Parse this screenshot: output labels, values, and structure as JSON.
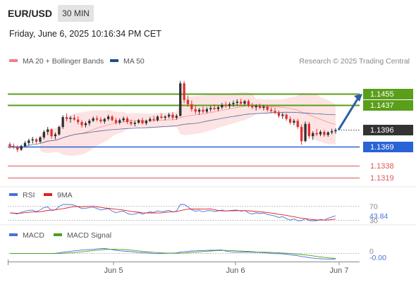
{
  "header": {
    "symbol": "EUR/USD",
    "timeframe": "30 MIN",
    "datetime": "Friday, June 6, 2025 10:16:34 PM CET"
  },
  "colors": {
    "candle_up": "#2f2f2f",
    "candle_down": "#e03030",
    "bollinger_fill": "#fde0e0",
    "bollinger_line": "#f08080",
    "ma50": "#1f4e8c",
    "resistance": "#5a9e1a",
    "pivot": "#2a63d6",
    "support": "#e05555",
    "last_price_bg": "#333333",
    "rsi": "#4a6fd8",
    "rsi_ma": "#e02020",
    "macd": "#4a6fd8",
    "macd_signal": "#4aa020"
  },
  "main_chart": {
    "legend": [
      {
        "label": "MA 20 + Bollinger Bands",
        "color": "#f08080"
      },
      {
        "label": "MA 50",
        "color": "#1f4e8c"
      }
    ],
    "credit": "Research © 2025 Trading Central",
    "levels": [
      {
        "value": 1.1455,
        "label": "1.1455",
        "kind": "resistance",
        "boxed": true
      },
      {
        "value": 1.1437,
        "label": "1.1437",
        "kind": "resistance",
        "boxed": true
      },
      {
        "value": 1.1396,
        "label": "1.1396",
        "kind": "last",
        "boxed": true
      },
      {
        "value": 1.1369,
        "label": "1.1369",
        "kind": "pivot",
        "boxed": true
      },
      {
        "value": 1.1338,
        "label": "1.1338",
        "kind": "support",
        "boxed": false
      },
      {
        "value": 1.1319,
        "label": "1.1319",
        "kind": "support",
        "boxed": false
      }
    ],
    "price_anchors": {
      "top_value": 1.1455,
      "bottom_value": 1.1369
    }
  },
  "rsi_panel": {
    "legend": [
      {
        "label": "RSI",
        "color": "#4a6fd8"
      },
      {
        "label": "9MA",
        "color": "#e02020"
      }
    ],
    "levels": [
      {
        "value": 70,
        "label": "70"
      },
      {
        "value": 30,
        "label": "30"
      }
    ],
    "current": "43.84"
  },
  "macd_panel": {
    "legend": [
      {
        "label": "MACD",
        "color": "#4a6fd8"
      },
      {
        "label": "MACD Signal",
        "color": "#4aa020"
      }
    ],
    "levels": [
      {
        "value": 0,
        "label": "0"
      }
    ],
    "current": "-0.00"
  },
  "x_axis": {
    "ticks": [
      "Jun 5",
      "Jun 6",
      "Jun 7"
    ]
  },
  "chart_data": {
    "type": "candlestick",
    "title": "EUR/USD",
    "timeframe": "30 MIN",
    "ylim": [
      1.13,
      1.149
    ],
    "x_ticks": [
      "Jun 5",
      "Jun 6",
      "Jun 7"
    ],
    "candles": [
      [
        1.1373,
        1.1376,
        1.1366,
        1.137
      ],
      [
        1.137,
        1.1374,
        1.1365,
        1.1368
      ],
      [
        1.1368,
        1.1371,
        1.136,
        1.1364
      ],
      [
        1.1364,
        1.1372,
        1.1362,
        1.137
      ],
      [
        1.137,
        1.1378,
        1.1368,
        1.1375
      ],
      [
        1.1375,
        1.1382,
        1.1371,
        1.1379
      ],
      [
        1.1379,
        1.1385,
        1.1374,
        1.1381
      ],
      [
        1.1381,
        1.1383,
        1.1374,
        1.1377
      ],
      [
        1.1377,
        1.1386,
        1.1375,
        1.1384
      ],
      [
        1.1384,
        1.1396,
        1.1381,
        1.1393
      ],
      [
        1.1393,
        1.1401,
        1.1388,
        1.1397
      ],
      [
        1.1397,
        1.1399,
        1.1382,
        1.1386
      ],
      [
        1.1386,
        1.1392,
        1.1381,
        1.1389
      ],
      [
        1.1389,
        1.1403,
        1.1387,
        1.1401
      ],
      [
        1.1401,
        1.142,
        1.1398,
        1.1417
      ],
      [
        1.1417,
        1.1423,
        1.141,
        1.1414
      ],
      [
        1.1414,
        1.1419,
        1.1408,
        1.1416
      ],
      [
        1.1416,
        1.1421,
        1.1411,
        1.1413
      ],
      [
        1.1413,
        1.1418,
        1.1405,
        1.1409
      ],
      [
        1.1409,
        1.1412,
        1.14,
        1.1404
      ],
      [
        1.1404,
        1.141,
        1.14,
        1.1407
      ],
      [
        1.1407,
        1.1414,
        1.1403,
        1.1411
      ],
      [
        1.1411,
        1.1418,
        1.1409,
        1.1415
      ],
      [
        1.1415,
        1.1419,
        1.141,
        1.1413
      ],
      [
        1.1413,
        1.1417,
        1.1407,
        1.141
      ],
      [
        1.141,
        1.1416,
        1.1406,
        1.1414
      ],
      [
        1.1414,
        1.1421,
        1.1411,
        1.1418
      ],
      [
        1.1418,
        1.142,
        1.141,
        1.1412
      ],
      [
        1.1412,
        1.1416,
        1.1405,
        1.1408
      ],
      [
        1.1408,
        1.1415,
        1.1405,
        1.1412
      ],
      [
        1.1412,
        1.1418,
        1.1409,
        1.1415
      ],
      [
        1.1415,
        1.1418,
        1.1406,
        1.1409
      ],
      [
        1.1409,
        1.1413,
        1.1403,
        1.1406
      ],
      [
        1.1406,
        1.1411,
        1.1402,
        1.1408
      ],
      [
        1.1408,
        1.1414,
        1.1406,
        1.1412
      ],
      [
        1.1412,
        1.1416,
        1.1405,
        1.1407
      ],
      [
        1.1407,
        1.1413,
        1.1404,
        1.1411
      ],
      [
        1.1411,
        1.1417,
        1.1409,
        1.1414
      ],
      [
        1.1414,
        1.1419,
        1.141,
        1.1412
      ],
      [
        1.1412,
        1.142,
        1.141,
        1.1418
      ],
      [
        1.1418,
        1.1423,
        1.1414,
        1.1416
      ],
      [
        1.1416,
        1.142,
        1.1412,
        1.1418
      ],
      [
        1.1418,
        1.1424,
        1.1415,
        1.1421
      ],
      [
        1.1421,
        1.1425,
        1.1413,
        1.1416
      ],
      [
        1.1416,
        1.1422,
        1.1413,
        1.1419
      ],
      [
        1.1419,
        1.1476,
        1.1418,
        1.1472
      ],
      [
        1.1472,
        1.1476,
        1.144,
        1.1445
      ],
      [
        1.1445,
        1.1452,
        1.1434,
        1.1438
      ],
      [
        1.1438,
        1.1444,
        1.1426,
        1.143
      ],
      [
        1.143,
        1.1436,
        1.1422,
        1.1426
      ],
      [
        1.1426,
        1.1432,
        1.1421,
        1.1429
      ],
      [
        1.1429,
        1.1434,
        1.1423,
        1.1426
      ],
      [
        1.1426,
        1.1433,
        1.1423,
        1.143
      ],
      [
        1.143,
        1.1436,
        1.1426,
        1.1432
      ],
      [
        1.1432,
        1.1438,
        1.1428,
        1.143
      ],
      [
        1.143,
        1.1436,
        1.1427,
        1.1433
      ],
      [
        1.1433,
        1.144,
        1.143,
        1.1437
      ],
      [
        1.1437,
        1.1442,
        1.1432,
        1.1435
      ],
      [
        1.1435,
        1.1441,
        1.1431,
        1.1438
      ],
      [
        1.1438,
        1.1444,
        1.1434,
        1.144
      ],
      [
        1.144,
        1.1446,
        1.1436,
        1.1442
      ],
      [
        1.1442,
        1.1447,
        1.1437,
        1.1439
      ],
      [
        1.1439,
        1.1445,
        1.1436,
        1.1443
      ],
      [
        1.1443,
        1.1446,
        1.1433,
        1.1436
      ],
      [
        1.1436,
        1.144,
        1.143,
        1.1433
      ],
      [
        1.1433,
        1.1438,
        1.1428,
        1.1435
      ],
      [
        1.1435,
        1.1439,
        1.143,
        1.1432
      ],
      [
        1.1432,
        1.1437,
        1.1428,
        1.1434
      ],
      [
        1.1434,
        1.1437,
        1.1426,
        1.1429
      ],
      [
        1.1429,
        1.1433,
        1.1424,
        1.1427
      ],
      [
        1.1427,
        1.1432,
        1.1422,
        1.1424
      ],
      [
        1.1424,
        1.1428,
        1.1416,
        1.1419
      ],
      [
        1.1419,
        1.1424,
        1.1414,
        1.1421
      ],
      [
        1.1421,
        1.1423,
        1.1411,
        1.1414
      ],
      [
        1.1414,
        1.1418,
        1.1405,
        1.1408
      ],
      [
        1.1408,
        1.1414,
        1.1404,
        1.1411
      ],
      [
        1.1411,
        1.1414,
        1.1398,
        1.1401
      ],
      [
        1.1401,
        1.1405,
        1.1372,
        1.1378
      ],
      [
        1.1378,
        1.141,
        1.1376,
        1.1406
      ],
      [
        1.1406,
        1.1409,
        1.1382,
        1.1386
      ],
      [
        1.1386,
        1.1394,
        1.138,
        1.1391
      ],
      [
        1.1391,
        1.1398,
        1.1386,
        1.1389
      ],
      [
        1.1389,
        1.1396,
        1.1386,
        1.1393
      ],
      [
        1.1393,
        1.1396,
        1.1385,
        1.1388
      ],
      [
        1.1388,
        1.1394,
        1.1385,
        1.1392
      ],
      [
        1.1392,
        1.1398,
        1.1389,
        1.1394
      ],
      [
        1.1394,
        1.1399,
        1.139,
        1.1396
      ]
    ],
    "levels": [
      1.1455,
      1.1437,
      1.1396,
      1.1369,
      1.1338,
      1.1319
    ],
    "rsi": {
      "current": 43.84,
      "levels": [
        70,
        30
      ]
    },
    "macd": {
      "current": -0.0,
      "zero": 0
    }
  }
}
